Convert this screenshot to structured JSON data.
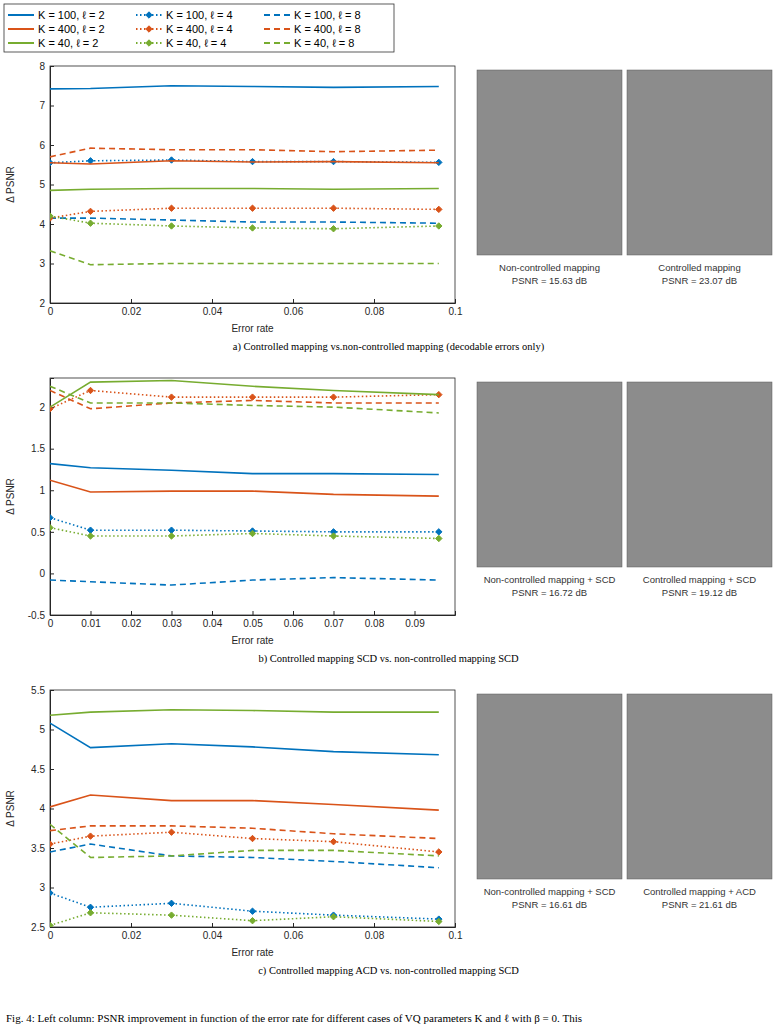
{
  "chart_data": [
    {
      "type": "line",
      "subtitle": "a) Controlled mapping vs.non-controlled mapping (decodable errors only)",
      "x_label": "Error rate",
      "y_label": "Δ PSNR",
      "legend": "top",
      "x": [
        0,
        0.01,
        0.03,
        0.05,
        0.07,
        0.096
      ],
      "xlim": [
        0,
        0.1
      ],
      "xticks": [
        0,
        0.02,
        0.04,
        0.06,
        0.08,
        0.1
      ],
      "ylim": [
        2,
        8
      ],
      "yticks": [
        2,
        3,
        4,
        5,
        6,
        7,
        8
      ],
      "series": [
        {
          "name": "K = 100, ℓ = 2",
          "color": "#0072bd",
          "line_style": "solid",
          "values": [
            7.42,
            7.43,
            7.5,
            7.48,
            7.46,
            7.48
          ]
        },
        {
          "name": "K = 100, ℓ = 4",
          "color": "#0072bd",
          "line_style": "dotted",
          "marker": "diamond",
          "values": [
            5.55,
            5.6,
            5.62,
            5.58,
            5.58,
            5.56
          ]
        },
        {
          "name": "K = 100, ℓ = 8",
          "color": "#0072bd",
          "line_style": "dashed",
          "values": [
            4.15,
            4.15,
            4.1,
            4.05,
            4.05,
            4.02
          ]
        },
        {
          "name": "K = 400, ℓ = 2",
          "color": "#d95319",
          "line_style": "solid",
          "values": [
            5.55,
            5.52,
            5.6,
            5.57,
            5.58,
            5.55
          ]
        },
        {
          "name": "K = 400, ℓ = 4",
          "color": "#d95319",
          "line_style": "dotted",
          "marker": "diamond",
          "values": [
            4.15,
            4.32,
            4.4,
            4.4,
            4.4,
            4.37
          ]
        },
        {
          "name": "K = 400, ℓ = 8",
          "color": "#d95319",
          "line_style": "dashed",
          "values": [
            5.7,
            5.92,
            5.88,
            5.88,
            5.83,
            5.87
          ]
        },
        {
          "name": "K = 40, ℓ = 2",
          "color": "#77ac30",
          "line_style": "solid",
          "values": [
            4.85,
            4.88,
            4.9,
            4.9,
            4.88,
            4.9
          ]
        },
        {
          "name": "K = 40, ℓ = 4",
          "color": "#77ac30",
          "line_style": "dotted",
          "marker": "diamond",
          "values": [
            4.2,
            4.02,
            3.95,
            3.9,
            3.88,
            3.95
          ]
        },
        {
          "name": "K = 40, ℓ = 8",
          "color": "#77ac30",
          "line_style": "dashed",
          "values": [
            3.32,
            2.97,
            3.0,
            3.0,
            3.0,
            3.0
          ]
        }
      ]
    },
    {
      "type": "line",
      "subtitle": "b) Controlled mapping SCD vs. non-controlled mapping SCD",
      "x_label": "Error rate",
      "y_label": "Δ PSNR",
      "x": [
        0,
        0.01,
        0.03,
        0.05,
        0.07,
        0.096
      ],
      "xlim": [
        0,
        0.1
      ],
      "xticks": [
        0,
        0.01,
        0.02,
        0.03,
        0.04,
        0.05,
        0.06,
        0.07,
        0.08,
        0.09
      ],
      "ylim": [
        -0.5,
        2.35
      ],
      "yticks": [
        -0.5,
        0,
        0.5,
        1,
        1.5,
        2
      ],
      "series": [
        {
          "color": "#0072bd",
          "line_style": "solid",
          "values": [
            1.32,
            1.27,
            1.24,
            1.2,
            1.2,
            1.19
          ]
        },
        {
          "color": "#0072bd",
          "line_style": "dotted",
          "marker": "diamond",
          "values": [
            0.67,
            0.52,
            0.52,
            0.51,
            0.5,
            0.5
          ]
        },
        {
          "color": "#0072bd",
          "line_style": "dashed",
          "values": [
            -0.08,
            -0.1,
            -0.14,
            -0.08,
            -0.05,
            -0.08
          ]
        },
        {
          "color": "#d95319",
          "line_style": "solid",
          "values": [
            1.12,
            0.98,
            0.99,
            0.99,
            0.95,
            0.93
          ]
        },
        {
          "color": "#d95319",
          "line_style": "dotted",
          "marker": "diamond",
          "values": [
            1.98,
            2.2,
            2.12,
            2.12,
            2.12,
            2.15
          ]
        },
        {
          "color": "#d95319",
          "line_style": "dashed",
          "values": [
            2.2,
            1.98,
            2.05,
            2.08,
            2.05,
            2.05
          ]
        },
        {
          "color": "#77ac30",
          "line_style": "solid",
          "values": [
            2.0,
            2.3,
            2.32,
            2.25,
            2.2,
            2.15
          ]
        },
        {
          "color": "#77ac30",
          "line_style": "dotted",
          "marker": "diamond",
          "values": [
            0.55,
            0.45,
            0.45,
            0.48,
            0.45,
            0.42
          ]
        },
        {
          "color": "#77ac30",
          "line_style": "dashed",
          "values": [
            2.25,
            2.05,
            2.05,
            2.02,
            2.0,
            1.93
          ]
        }
      ]
    },
    {
      "type": "line",
      "subtitle": "c) Controlled mapping ACD vs. non-controlled mapping SCD",
      "x_label": "Error rate",
      "y_label": "Δ PSNR",
      "x": [
        0,
        0.01,
        0.03,
        0.05,
        0.07,
        0.096
      ],
      "xlim": [
        0,
        0.1
      ],
      "xticks": [
        0,
        0.02,
        0.04,
        0.06,
        0.08,
        0.1
      ],
      "ylim": [
        2.5,
        5.5
      ],
      "yticks": [
        2.5,
        3,
        3.5,
        4,
        4.5,
        5,
        5.5
      ],
      "series": [
        {
          "color": "#0072bd",
          "line_style": "solid",
          "values": [
            5.08,
            4.77,
            4.82,
            4.78,
            4.72,
            4.68
          ]
        },
        {
          "color": "#0072bd",
          "line_style": "dotted",
          "marker": "diamond",
          "values": [
            2.93,
            2.75,
            2.8,
            2.7,
            2.65,
            2.6
          ]
        },
        {
          "color": "#0072bd",
          "line_style": "dashed",
          "values": [
            3.45,
            3.55,
            3.4,
            3.38,
            3.33,
            3.25
          ]
        },
        {
          "color": "#d95319",
          "line_style": "solid",
          "values": [
            4.02,
            4.17,
            4.1,
            4.1,
            4.05,
            3.98
          ]
        },
        {
          "color": "#d95319",
          "line_style": "dotted",
          "marker": "diamond",
          "values": [
            3.55,
            3.65,
            3.7,
            3.62,
            3.58,
            3.45
          ]
        },
        {
          "color": "#d95319",
          "line_style": "dashed",
          "values": [
            3.72,
            3.78,
            3.78,
            3.75,
            3.68,
            3.62
          ]
        },
        {
          "color": "#77ac30",
          "line_style": "solid",
          "values": [
            5.18,
            5.22,
            5.25,
            5.24,
            5.22,
            5.22
          ]
        },
        {
          "color": "#77ac30",
          "line_style": "dotted",
          "marker": "diamond",
          "values": [
            2.52,
            2.68,
            2.65,
            2.58,
            2.63,
            2.57
          ]
        },
        {
          "color": "#77ac30",
          "line_style": "dashed",
          "values": [
            3.8,
            3.38,
            3.4,
            3.47,
            3.47,
            3.4
          ]
        }
      ]
    }
  ],
  "photos": [
    [
      {
        "title": "Non-controlled mapping",
        "label": "PSNR = 15.63 dB"
      },
      {
        "title": "Controlled mapping",
        "label": "PSNR = 23.07 dB"
      }
    ],
    [
      {
        "title": "Non-controlled mapping + SCD",
        "label": "PSNR = 16.72 dB"
      },
      {
        "title": "Controlled mapping + SCD",
        "label": "PSNR = 19.12 dB"
      }
    ],
    [
      {
        "title": "Non-controlled mapping + SCD",
        "label": "PSNR = 16.61 dB"
      },
      {
        "title": "Controlled mapping + ACD",
        "label": "PSNR = 21.61 dB"
      }
    ]
  ],
  "caption": "Fig. 4: Left column: PSNR improvement in function of the error rate for different cases of VQ parameters K and ℓ with β = 0. This"
}
